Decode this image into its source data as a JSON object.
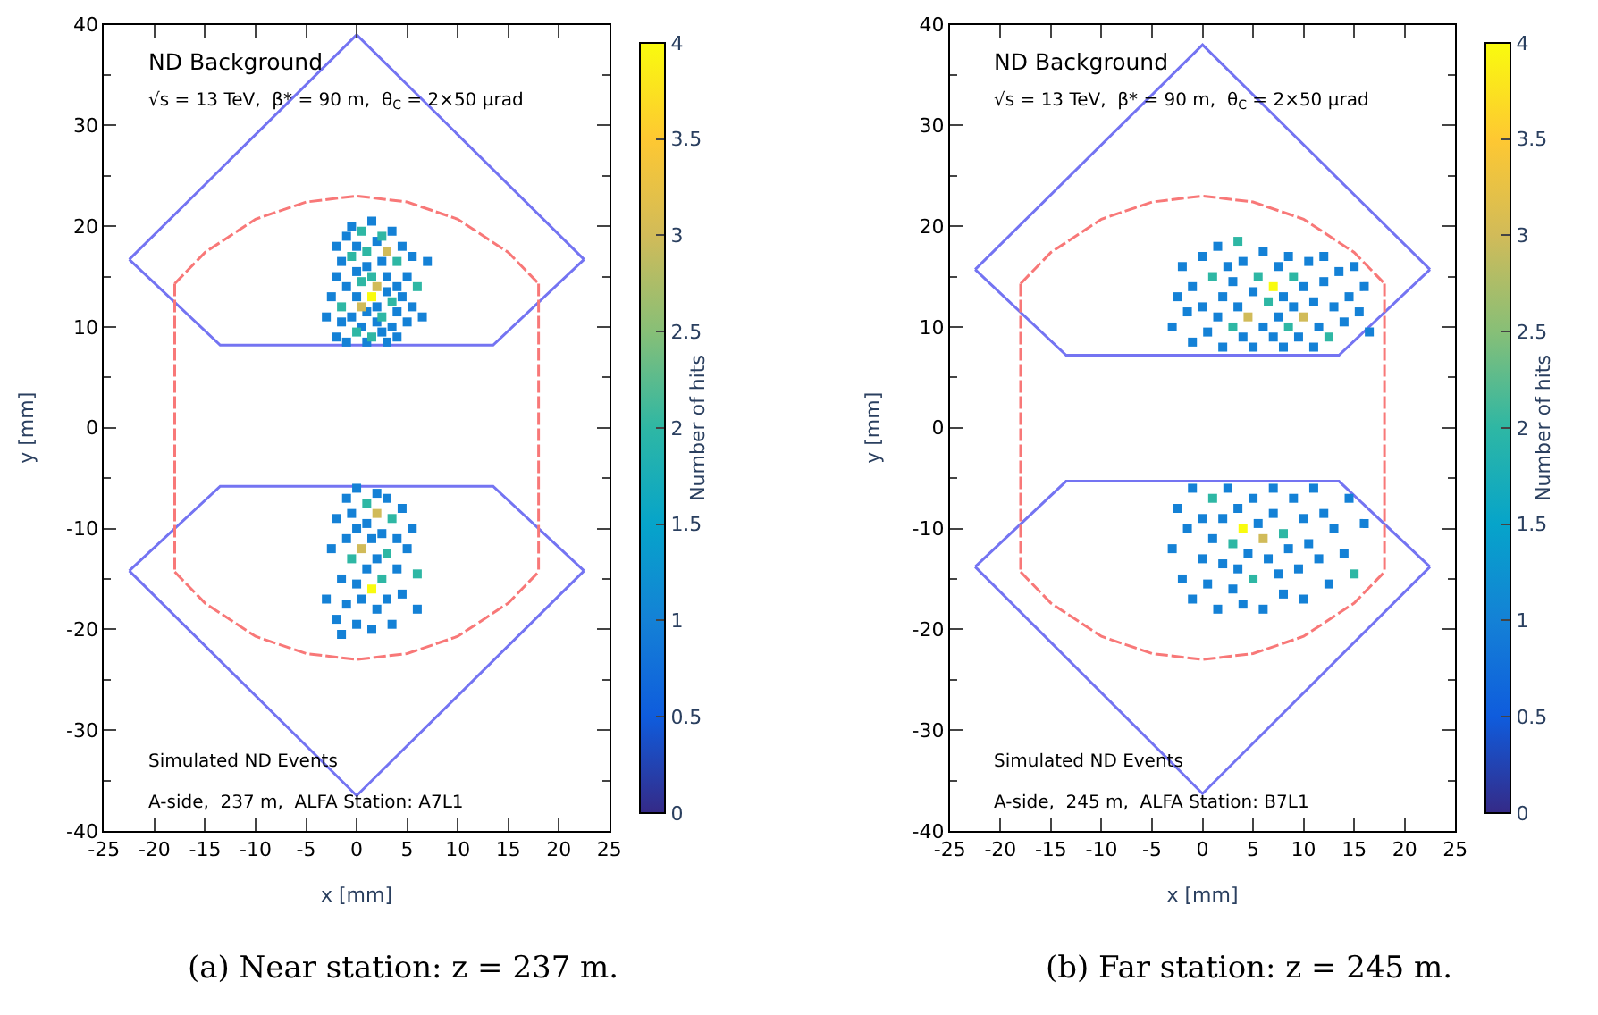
{
  "chart_data": [
    {
      "type": "line",
      "xlabel": "x [mm]",
      "ylabel": "y [mm]",
      "clabel": "Number of hits",
      "xlim": [
        -25,
        25
      ],
      "xticks": [
        -25,
        -20,
        -15,
        -10,
        -5,
        0,
        5,
        10,
        15,
        20,
        25
      ],
      "ylim": [
        -40,
        40
      ],
      "yticks": [
        -40,
        -30,
        -20,
        -10,
        0,
        10,
        20,
        30,
        40
      ],
      "clim": [
        0,
        4
      ],
      "cticks": [
        0,
        0.5,
        1,
        1.5,
        2,
        2.5,
        3,
        3.5,
        4
      ],
      "annotations": [
        "ND Background",
        "√s = 13 TeV,  β* = 90 m,  θ$_{C}$ = 2×50 μrad",
        "Simulated ND Events",
        "A-side,  237 m,  ALFA Station: A7L1",
        "(a) Near station: z = 237 m."
      ],
      "series": [
        {
          "color": "#7474f2",
          "line_style": "solid",
          "x": [
            -22.5,
            0,
            22.5
          ],
          "values": [
            16.7,
            39,
            16.7
          ]
        },
        {
          "color": "#7474f2",
          "line_style": "solid",
          "x": [
            -22.5,
            -13.5,
            13.5,
            22.5
          ],
          "values": [
            16.7,
            8.2,
            8.2,
            16.7
          ]
        },
        {
          "color": "#7474f2",
          "line_style": "solid",
          "x": [
            -22.5,
            -13.5,
            13.5,
            22.5
          ],
          "values": [
            -14.2,
            -5.8,
            -5.8,
            -14.2
          ]
        },
        {
          "color": "#7474f2",
          "line_style": "solid",
          "x": [
            -22.5,
            0,
            22.5
          ],
          "values": [
            -14.2,
            -36.5,
            -14.2
          ]
        },
        {
          "color": "#f87878",
          "line_style": "dashed",
          "x": [
            -18,
            -15,
            -10,
            -5,
            0,
            5,
            10,
            15,
            18
          ],
          "values": [
            14.3,
            17.4,
            20.7,
            22.4,
            23,
            22.4,
            20.7,
            17.4,
            14.3
          ]
        },
        {
          "color": "#f87878",
          "line_style": "dashed",
          "x": [
            -18,
            -15,
            -10,
            -5,
            0,
            5,
            10,
            15,
            18
          ],
          "values": [
            -14.3,
            -17.4,
            -20.7,
            -22.4,
            -23,
            -22.4,
            -20.7,
            -17.4,
            -14.3
          ]
        },
        {
          "color": "#f87878",
          "line_style": "dashed",
          "x": [
            -18,
            -18
          ],
          "values": [
            14.3,
            -14.3
          ]
        },
        {
          "color": "#f87878",
          "line_style": "dashed",
          "x": [
            18,
            18
          ],
          "values": [
            14.3,
            -14.3
          ]
        },
        {
          "type": "scatter",
          "marker": "square",
          "color": "#1481d6",
          "x": [
            -3,
            -2.5,
            -2,
            -2,
            -2,
            -1.5,
            -1.5,
            -1,
            -1,
            -1,
            -0.5,
            -0.5,
            0,
            0,
            0,
            0.5,
            1,
            1,
            1,
            1.5,
            2,
            2,
            2,
            2.5,
            2.5,
            3,
            3,
            3,
            3.5,
            3.5,
            4,
            4,
            4,
            4.5,
            4.5,
            5,
            5,
            5.5,
            5.5,
            6.5,
            7,
            -3,
            -2.5,
            -2,
            -2,
            -1.5,
            -1.5,
            -1,
            -1,
            -1,
            -0.5,
            0,
            0,
            0,
            0,
            0.5,
            1,
            1,
            1.5,
            1.5,
            2,
            2,
            2,
            2.5,
            3,
            3,
            3.5,
            4,
            4,
            4.5,
            4.5,
            5,
            5.5,
            6
          ],
          "values": [
            11,
            13,
            9,
            15,
            18,
            10.5,
            16.5,
            8.5,
            14,
            19,
            11,
            20,
            13,
            15.5,
            18,
            10,
            8.5,
            11.5,
            16,
            20.5,
            10.5,
            12,
            18.5,
            9.5,
            16.5,
            8.5,
            13.5,
            15,
            10,
            19.5,
            9,
            11.5,
            14,
            13,
            18,
            10.5,
            15,
            12,
            17,
            11,
            16.5,
            -17,
            -12,
            -19,
            -9,
            -15,
            -20.5,
            -7,
            -11,
            -17.5,
            -8.5,
            -6,
            -10,
            -15.5,
            -19.5,
            -17,
            -9.5,
            -14,
            -11,
            -20,
            -6.5,
            -13,
            -18,
            -10.5,
            -7,
            -17,
            -19.5,
            -11,
            -14,
            -8,
            -16.5,
            -12,
            -10,
            -18
          ]
        },
        {
          "type": "scatter",
          "marker": "square",
          "color": "#2eb7a4",
          "x": [
            -1.5,
            -0.5,
            0,
            0.5,
            0.5,
            1,
            1.5,
            1.5,
            2.5,
            2.5,
            3.5,
            4,
            6,
            -0.5,
            1,
            2.5,
            3,
            3.5,
            6
          ],
          "values": [
            12,
            17,
            9.5,
            14.5,
            19.5,
            17.5,
            9,
            15,
            11,
            19,
            12.5,
            16.5,
            14,
            -13,
            -7.5,
            -15,
            -12.5,
            -9,
            -14.5
          ]
        },
        {
          "type": "scatter",
          "marker": "square",
          "color": "#d1bb59",
          "x": [
            0.5,
            2,
            3,
            0.5,
            2
          ],
          "values": [
            12,
            14,
            17.5,
            -12,
            -8.5
          ]
        },
        {
          "type": "scatter",
          "marker": "square",
          "color": "#f9fb0e",
          "x": [
            1.5,
            1.5
          ],
          "values": [
            13,
            -16
          ]
        }
      ]
    },
    {
      "type": "line",
      "xlabel": "x [mm]",
      "ylabel": "y [mm]",
      "clabel": "Number of hits",
      "xlim": [
        -25,
        25
      ],
      "xticks": [
        -25,
        -20,
        -15,
        -10,
        -5,
        0,
        5,
        10,
        15,
        20,
        25
      ],
      "ylim": [
        -40,
        40
      ],
      "yticks": [
        -40,
        -30,
        -20,
        -10,
        0,
        10,
        20,
        30,
        40
      ],
      "clim": [
        0,
        4
      ],
      "cticks": [
        0,
        0.5,
        1,
        1.5,
        2,
        2.5,
        3,
        3.5,
        4
      ],
      "annotations": [
        "ND Background",
        "√s = 13 TeV,  β* = 90 m,  θ$_{C}$ = 2×50 μrad",
        "Simulated ND Events",
        "A-side,  245 m,  ALFA Station: B7L1",
        "(b) Far station: z = 245 m."
      ],
      "series": [
        {
          "color": "#7474f2",
          "line_style": "solid",
          "x": [
            -22.5,
            0,
            22.5
          ],
          "values": [
            15.7,
            38,
            15.7
          ]
        },
        {
          "color": "#7474f2",
          "line_style": "solid",
          "x": [
            -22.5,
            -13.5,
            13.5,
            22.5
          ],
          "values": [
            15.7,
            7.2,
            7.2,
            15.7
          ]
        },
        {
          "color": "#7474f2",
          "line_style": "solid",
          "x": [
            -22.5,
            -13.5,
            13.5,
            22.5
          ],
          "values": [
            -13.8,
            -5.3,
            -5.3,
            -13.8
          ]
        },
        {
          "color": "#7474f2",
          "line_style": "solid",
          "x": [
            -22.5,
            0,
            22.5
          ],
          "values": [
            -13.8,
            -36.3,
            -13.8
          ]
        },
        {
          "color": "#f87878",
          "line_style": "dashed",
          "x": [
            -18,
            -15,
            -10,
            -5,
            0,
            5,
            10,
            15,
            18
          ],
          "values": [
            14.3,
            17.4,
            20.7,
            22.4,
            23,
            22.4,
            20.7,
            17.4,
            14.3
          ]
        },
        {
          "color": "#f87878",
          "line_style": "dashed",
          "x": [
            -18,
            -15,
            -10,
            -5,
            0,
            5,
            10,
            15,
            18
          ],
          "values": [
            -14.3,
            -17.4,
            -20.7,
            -22.4,
            -23,
            -22.4,
            -20.7,
            -17.4,
            -14.3
          ]
        },
        {
          "color": "#f87878",
          "line_style": "dashed",
          "x": [
            -18,
            -18
          ],
          "values": [
            14.3,
            -14.3
          ]
        },
        {
          "color": "#f87878",
          "line_style": "dashed",
          "x": [
            18,
            18
          ],
          "values": [
            14.3,
            -14.3
          ]
        },
        {
          "type": "scatter",
          "marker": "square",
          "color": "#1481d6",
          "x": [
            -3,
            -2.5,
            -2,
            -1.5,
            -1,
            -1,
            0,
            0,
            0.5,
            1.5,
            1.5,
            2,
            2,
            2.5,
            3,
            3.5,
            4,
            4,
            5,
            5,
            6,
            6,
            7,
            7.5,
            7.5,
            8,
            8,
            8.5,
            9,
            9.5,
            10,
            10.5,
            11,
            11,
            11.5,
            12,
            12,
            13,
            13.5,
            14,
            14.5,
            15,
            15.5,
            16,
            16.5,
            -3,
            -2.5,
            -2,
            -1.5,
            -1,
            -1,
            0,
            0,
            0.5,
            1,
            1.5,
            2,
            2,
            2.5,
            3,
            3.5,
            3.5,
            4,
            4.5,
            5,
            5.5,
            6,
            6.5,
            7,
            7,
            7.5,
            8,
            8.5,
            9,
            9.5,
            10,
            10,
            10.5,
            11,
            11.5,
            12,
            12.5,
            13,
            14,
            14.5,
            16
          ],
          "values": [
            10,
            13,
            16,
            11.5,
            14,
            8.5,
            12,
            17,
            9.5,
            11,
            18,
            13,
            8,
            16,
            14.5,
            12,
            9,
            16.5,
            13.5,
            8,
            10,
            17.5,
            9,
            11,
            16,
            8,
            13,
            17,
            12,
            9,
            14,
            16.5,
            8,
            12.5,
            10,
            14.5,
            17,
            12,
            15.5,
            10.5,
            13,
            16,
            11.5,
            14,
            9.5,
            -12,
            -8,
            -15,
            -10,
            -6,
            -17,
            -13,
            -9,
            -15.5,
            -11,
            -18,
            -13.5,
            -9,
            -6,
            -16,
            -8,
            -14,
            -17.5,
            -12.5,
            -7,
            -9.5,
            -18,
            -13,
            -6,
            -8.5,
            -14.5,
            -16.5,
            -12,
            -7,
            -14,
            -9,
            -17,
            -11.5,
            -6,
            -13,
            -8.5,
            -15.5,
            -10,
            -12.5,
            -7,
            -9.5
          ]
        },
        {
          "type": "scatter",
          "marker": "square",
          "color": "#2eb7a4",
          "x": [
            1,
            3,
            3.5,
            5.5,
            6.5,
            8.5,
            9,
            12.5,
            1,
            3,
            5,
            8,
            15
          ],
          "values": [
            15,
            10,
            18.5,
            15,
            12.5,
            10,
            15,
            9,
            -7,
            -11.5,
            -15,
            -10.5,
            -14.5
          ]
        },
        {
          "type": "scatter",
          "marker": "square",
          "color": "#d1bb59",
          "x": [
            4.5,
            10,
            6
          ],
          "values": [
            11,
            11,
            -11
          ]
        },
        {
          "type": "scatter",
          "marker": "square",
          "color": "#f9fb0e",
          "x": [
            7,
            4
          ],
          "values": [
            14,
            -10
          ]
        }
      ]
    }
  ]
}
